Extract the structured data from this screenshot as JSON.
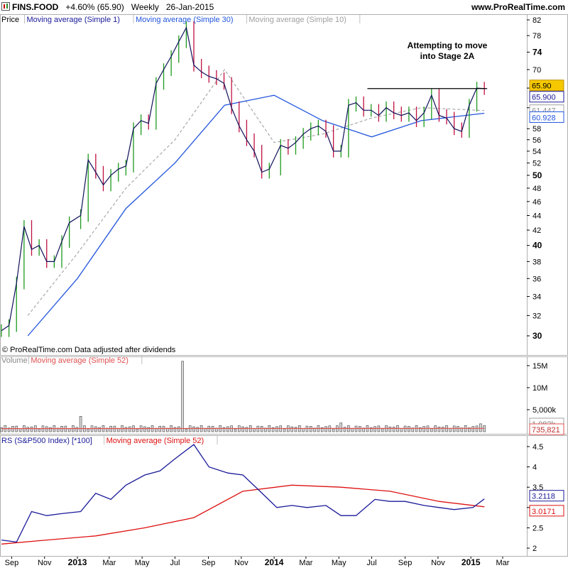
{
  "header": {
    "symbol": "FINS.FOOD",
    "change": "+4.60% (65.90)",
    "period": "Weekly",
    "date": "26-Jan-2015",
    "site": "www.ProRealTime.com"
  },
  "price_panel": {
    "legend": [
      {
        "text": "Price",
        "color": "#000000"
      },
      {
        "text": "Moving average (Simple 1)",
        "color": "#1a1a9a"
      },
      {
        "text": "Moving average (Simple 30)",
        "color": "#2255dd"
      },
      {
        "text": "Moving average (Simple 10)",
        "color": "#a0a0a0"
      }
    ],
    "y_ticks": [
      "82",
      "78",
      "74",
      "70",
      "66",
      "62",
      "58",
      "56",
      "54",
      "52",
      "50",
      "48",
      "46",
      "44",
      "42",
      "40",
      "38",
      "36",
      "34",
      "32",
      "30"
    ],
    "annotation": "Attempting to move\ninto Stage 2A",
    "resistance_level": 65.9,
    "badges": [
      {
        "text": "65.90",
        "bg": "#f5c800",
        "border": "#c09000",
        "fg": "#000000"
      },
      {
        "text": "65.900",
        "bg": "#ffffff",
        "border": "#1a1a9a",
        "fg": "#1a1a9a"
      },
      {
        "text": "61.447",
        "bg": "#ffffff",
        "border": "#a0a0a0",
        "fg": "#909090"
      },
      {
        "text": "60.928",
        "bg": "#ffffff",
        "border": "#2255dd",
        "fg": "#2255dd"
      }
    ],
    "copyright": "© ProRealTime.com  Data adjusted after dividends"
  },
  "volume_panel": {
    "legend": [
      {
        "text": "Volume",
        "color": "#888888"
      },
      {
        "text": "Moving average (Simple 52)",
        "color": "#e05050"
      }
    ],
    "y_ticks": [
      "15M",
      "10M",
      "5,000k"
    ],
    "badges": [
      {
        "text": "1,082k",
        "bg": "#ffffff",
        "border": "#a0a0a0",
        "fg": "#808080"
      },
      {
        "text": "735,821",
        "bg": "#ffffff",
        "border": "#e05050",
        "fg": "#c03030"
      }
    ]
  },
  "rs_panel": {
    "legend": [
      {
        "text": "RS (S&P500 Index) [*100]",
        "color": "#1a1a9a"
      },
      {
        "text": "Moving average (Simple 52)",
        "color": "#dd1111"
      }
    ],
    "y_ticks": [
      "4.5",
      "4",
      "3.5",
      "3",
      "2.5",
      "2"
    ],
    "badges": [
      {
        "text": "3.2118",
        "bg": "#ffffff",
        "border": "#1a1a9a",
        "fg": "#1a1a9a"
      },
      {
        "text": "3.0171",
        "bg": "#ffffff",
        "border": "#dd1111",
        "fg": "#dd1111"
      }
    ]
  },
  "x_axis": {
    "ticks": [
      "Sep",
      "Nov",
      "2013",
      "Mar",
      "May",
      "Jul",
      "Sep",
      "Nov",
      "2014",
      "Mar",
      "May",
      "Jul",
      "Sep",
      "Nov",
      "2015",
      "Mar"
    ],
    "bold": [
      "2013",
      "2014",
      "2015"
    ]
  },
  "chart_data": {
    "type": "line",
    "title": "FINS.FOOD Weekly",
    "scale": "log",
    "x_range": [
      "2012-08-13",
      "2015-03-30"
    ],
    "price_range": [
      29,
      83
    ],
    "price_weekly_close": {
      "x": [
        "2012-08-13",
        "2012-08-27",
        "2012-09-10",
        "2012-09-24",
        "2012-10-08",
        "2012-10-22",
        "2012-11-05",
        "2012-11-19",
        "2012-12-03",
        "2012-12-17",
        "2013-01-07",
        "2013-01-21",
        "2013-02-04",
        "2013-02-18",
        "2013-03-04",
        "2013-03-18",
        "2013-04-01",
        "2013-04-15",
        "2013-04-29",
        "2013-05-13",
        "2013-05-27",
        "2013-06-10",
        "2013-06-24",
        "2013-07-08",
        "2013-07-22",
        "2013-08-05",
        "2013-08-19",
        "2013-09-02",
        "2013-09-16",
        "2013-09-30",
        "2013-10-14",
        "2013-10-28",
        "2013-11-11",
        "2013-11-25",
        "2013-12-09",
        "2013-12-23",
        "2014-01-13",
        "2014-01-27",
        "2014-02-10",
        "2014-02-24",
        "2014-03-10",
        "2014-03-24",
        "2014-04-07",
        "2014-04-21",
        "2014-05-05",
        "2014-05-19",
        "2014-06-02",
        "2014-06-16",
        "2014-06-30",
        "2014-07-14",
        "2014-07-28",
        "2014-08-11",
        "2014-08-25",
        "2014-09-08",
        "2014-09-22",
        "2014-10-06",
        "2014-10-20",
        "2014-11-03",
        "2014-11-17",
        "2014-12-01",
        "2014-12-15",
        "2014-12-29",
        "2015-01-12",
        "2015-01-26"
      ],
      "close": [
        30.5,
        31.0,
        35.5,
        42.5,
        39.5,
        40.0,
        38.0,
        38.0,
        40.5,
        43.0,
        44.0,
        52.5,
        50.5,
        48.5,
        50.0,
        51.0,
        51.5,
        58.0,
        59.5,
        59.0,
        67.0,
        70.0,
        73.0,
        76.5,
        80.0,
        71.0,
        69.5,
        68.5,
        68.0,
        67.0,
        62.0,
        58.5,
        56.0,
        54.0,
        50.5,
        51.0,
        55.0,
        54.5,
        55.5,
        57.0,
        58.0,
        58.5,
        57.5,
        54.0,
        54.0,
        62.5,
        63.0,
        61.5,
        61.5,
        60.5,
        62.0,
        61.0,
        60.5,
        61.0,
        59.5,
        61.0,
        64.5,
        60.5,
        60.0,
        58.0,
        57.5,
        62.5,
        66.0,
        65.9
      ]
    },
    "ma30": {
      "x": [
        "2012-10-01",
        "2013-01-01",
        "2013-04-01",
        "2013-07-01",
        "2013-10-01",
        "2014-01-01",
        "2014-04-01",
        "2014-07-01",
        "2014-10-01",
        "2015-01-26"
      ],
      "y": [
        30.0,
        36.0,
        45.0,
        52.0,
        62.5,
        64.5,
        59.5,
        56.5,
        59.5,
        60.928
      ]
    },
    "ma10": {
      "x": [
        "2012-10-01",
        "2013-01-01",
        "2013-04-01",
        "2013-07-01",
        "2013-10-01",
        "2014-01-01",
        "2014-04-01",
        "2014-07-01",
        "2014-10-01",
        "2015-01-26"
      ],
      "y": [
        32.0,
        39.0,
        48.0,
        56.0,
        70.0,
        55.5,
        57.0,
        60.0,
        62.0,
        61.447
      ]
    },
    "volume": {
      "unit": "shares",
      "y_range": [
        0,
        16000000
      ],
      "spikes": [
        {
          "x": "2013-01-07",
          "value": 3500000
        },
        {
          "x": "2013-07-15",
          "value": 16000000
        },
        {
          "x": "2014-05-05",
          "value": 2000000
        },
        {
          "x": "2015-01-19",
          "value": 1800000
        }
      ],
      "typical_weekly": 1000000
    },
    "rs": {
      "name": "RS (S&P500 Index) [*100]",
      "y_range": [
        2.0,
        4.75
      ],
      "x": [
        "2012-08-13",
        "2012-09-10",
        "2012-10-08",
        "2012-11-05",
        "2012-12-03",
        "2013-01-07",
        "2013-02-04",
        "2013-03-04",
        "2013-04-01",
        "2013-05-06",
        "2013-06-03",
        "2013-07-01",
        "2013-08-05",
        "2013-09-02",
        "2013-10-07",
        "2013-11-04",
        "2013-12-02",
        "2014-01-06",
        "2014-02-03",
        "2014-03-03",
        "2014-04-07",
        "2014-05-05",
        "2014-06-02",
        "2014-07-07",
        "2014-08-04",
        "2014-09-01",
        "2014-10-06",
        "2014-11-03",
        "2014-12-01",
        "2015-01-05",
        "2015-01-26"
      ],
      "y": [
        2.2,
        2.15,
        2.9,
        2.8,
        2.85,
        2.9,
        3.35,
        3.2,
        3.55,
        3.8,
        3.9,
        4.2,
        4.55,
        4.0,
        3.85,
        3.8,
        3.45,
        3.0,
        3.05,
        3.0,
        3.05,
        2.8,
        2.8,
        3.2,
        3.15,
        3.15,
        3.05,
        3.0,
        2.95,
        3.0,
        3.2118
      ]
    },
    "rs_ma52": {
      "x": [
        "2012-08-13",
        "2012-11-05",
        "2013-02-04",
        "2013-05-06",
        "2013-08-05",
        "2013-11-04",
        "2014-02-03",
        "2014-05-05",
        "2014-08-04",
        "2014-11-03",
        "2015-01-26"
      ],
      "y": [
        2.1,
        2.2,
        2.3,
        2.5,
        2.75,
        3.4,
        3.55,
        3.5,
        3.4,
        3.15,
        3.0171
      ]
    }
  }
}
